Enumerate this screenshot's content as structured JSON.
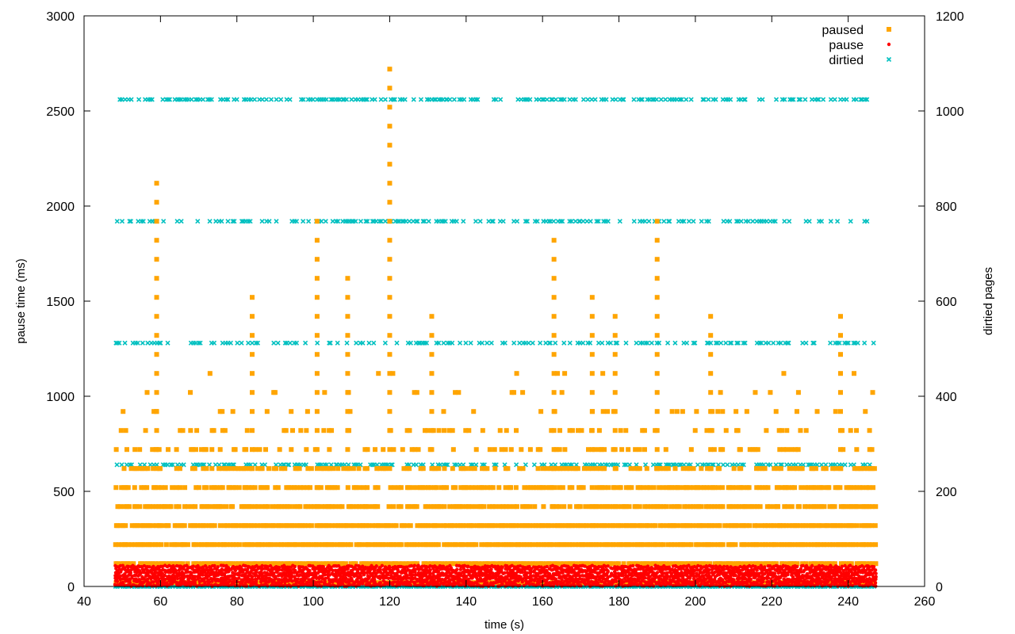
{
  "chart_data": {
    "type": "scatter",
    "title": "",
    "xlabel": "time (s)",
    "ylabel": "pause time (ms)",
    "y2label": "dirtied pages",
    "xlim": [
      40,
      260
    ],
    "ylim": [
      0,
      3000
    ],
    "y2lim": [
      0,
      1200
    ],
    "x_ticks": [
      40,
      60,
      80,
      100,
      120,
      140,
      160,
      180,
      200,
      220,
      240,
      260
    ],
    "y_ticks": [
      0,
      500,
      1000,
      1500,
      2000,
      2500,
      3000
    ],
    "y2_ticks": [
      0,
      200,
      400,
      600,
      800,
      1000,
      1200
    ],
    "grid": false,
    "legend_position": "top-right",
    "x_range_of_samples": [
      48,
      247
    ],
    "series": [
      {
        "name": "paused",
        "axis": "y",
        "marker": "square",
        "color": "#ffa500",
        "levels": [
          20,
          120,
          220,
          320,
          420,
          520,
          620,
          720,
          820,
          920,
          1020,
          1120
        ],
        "spikes": [
          {
            "x": 59,
            "max": 2120
          },
          {
            "x": 84,
            "max": 1520
          },
          {
            "x": 101,
            "max": 1920
          },
          {
            "x": 109,
            "max": 1620
          },
          {
            "x": 120,
            "max": 2720
          },
          {
            "x": 131,
            "max": 1420
          },
          {
            "x": 163,
            "max": 1820
          },
          {
            "x": 173,
            "max": 1520
          },
          {
            "x": 179,
            "max": 1420
          },
          {
            "x": 190,
            "max": 1920
          },
          {
            "x": 204,
            "max": 1420
          },
          {
            "x": 238,
            "max": 1420
          }
        ]
      },
      {
        "name": "pause",
        "axis": "y",
        "marker": "dot",
        "color": "#ff0000",
        "levels": [
          8,
          24,
          40,
          56,
          72,
          88,
          104
        ]
      },
      {
        "name": "dirtied",
        "axis": "y2",
        "marker": "cross",
        "color": "#00c0c0",
        "levels": [
          0,
          256,
          512,
          768,
          1024
        ]
      }
    ]
  }
}
